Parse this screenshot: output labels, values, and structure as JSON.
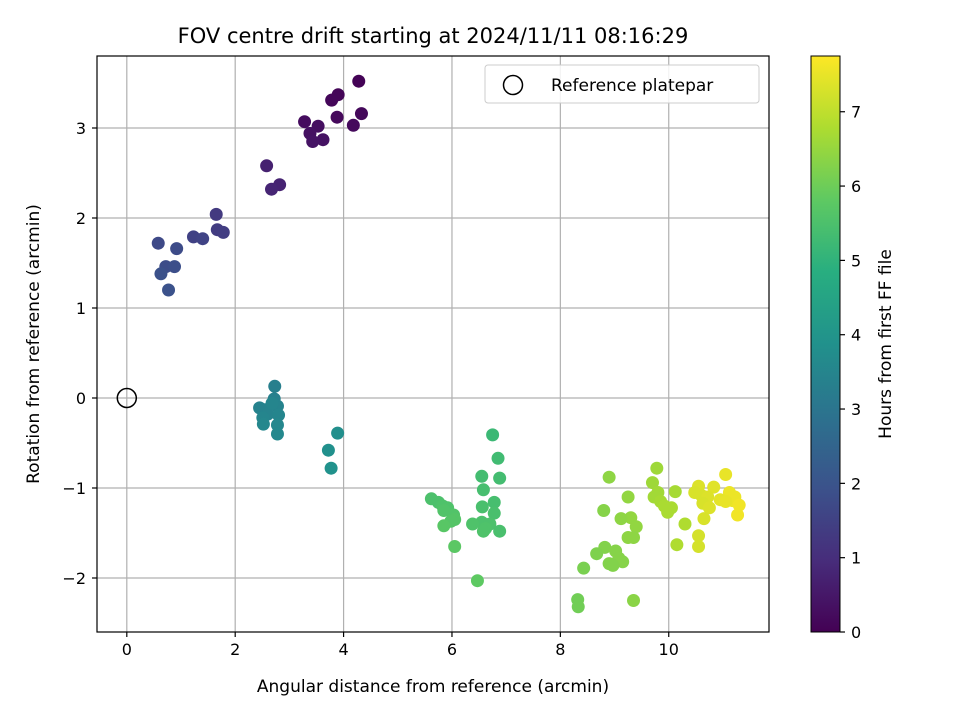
{
  "chart_data": {
    "type": "scatter",
    "title": "FOV centre drift starting at 2024/11/11 08:16:29",
    "xlabel": "Angular distance from reference (arcmin)",
    "ylabel": "Rotation from reference (arcmin)",
    "xlim": [
      -0.55,
      11.85
    ],
    "ylim": [
      -2.6,
      3.8
    ],
    "x_ticks": [
      "0",
      "2",
      "4",
      "6",
      "8",
      "10"
    ],
    "y_ticks": [
      "3",
      "2",
      "1",
      "0",
      "−1",
      "−2"
    ],
    "grid": true,
    "legend": {
      "label": "Reference platepar",
      "position": "top-right"
    },
    "reference_point": {
      "x": 0,
      "y": 0
    },
    "colorbar": {
      "label": "Hours from first FF file",
      "colormap": "viridis",
      "range": [
        0,
        7.75
      ],
      "ticks": [
        "0",
        "1",
        "2",
        "3",
        "4",
        "5",
        "6",
        "7"
      ]
    },
    "points": [
      {
        "x": 4.28,
        "y": 3.52,
        "c": 0.05
      },
      {
        "x": 3.9,
        "y": 3.37,
        "c": 0.1
      },
      {
        "x": 3.78,
        "y": 3.31,
        "c": 0.12
      },
      {
        "x": 4.33,
        "y": 3.16,
        "c": 0.15
      },
      {
        "x": 3.88,
        "y": 3.12,
        "c": 0.18
      },
      {
        "x": 4.18,
        "y": 3.03,
        "c": 0.2
      },
      {
        "x": 3.28,
        "y": 3.07,
        "c": 0.25
      },
      {
        "x": 3.53,
        "y": 3.02,
        "c": 0.3
      },
      {
        "x": 3.38,
        "y": 2.94,
        "c": 0.35
      },
      {
        "x": 3.62,
        "y": 2.87,
        "c": 0.38
      },
      {
        "x": 3.43,
        "y": 2.85,
        "c": 0.4
      },
      {
        "x": 2.58,
        "y": 2.58,
        "c": 0.7
      },
      {
        "x": 2.82,
        "y": 2.37,
        "c": 0.75
      },
      {
        "x": 2.67,
        "y": 2.32,
        "c": 0.8
      },
      {
        "x": 1.65,
        "y": 2.04,
        "c": 1.3
      },
      {
        "x": 1.67,
        "y": 1.87,
        "c": 1.35
      },
      {
        "x": 1.78,
        "y": 1.84,
        "c": 1.4
      },
      {
        "x": 1.23,
        "y": 1.79,
        "c": 1.5
      },
      {
        "x": 1.4,
        "y": 1.77,
        "c": 1.55
      },
      {
        "x": 0.58,
        "y": 1.72,
        "c": 1.7
      },
      {
        "x": 0.92,
        "y": 1.66,
        "c": 1.75
      },
      {
        "x": 0.72,
        "y": 1.46,
        "c": 1.8
      },
      {
        "x": 0.88,
        "y": 1.46,
        "c": 1.85
      },
      {
        "x": 0.63,
        "y": 1.38,
        "c": 1.9
      },
      {
        "x": 0.77,
        "y": 1.2,
        "c": 1.95
      },
      {
        "x": 2.73,
        "y": 0.13,
        "c": 3.3
      },
      {
        "x": 2.72,
        "y": -0.01,
        "c": 3.35
      },
      {
        "x": 2.45,
        "y": -0.11,
        "c": 3.4
      },
      {
        "x": 2.55,
        "y": -0.13,
        "c": 3.4
      },
      {
        "x": 2.78,
        "y": -0.09,
        "c": 3.45
      },
      {
        "x": 2.6,
        "y": -0.18,
        "c": 3.45
      },
      {
        "x": 2.8,
        "y": -0.19,
        "c": 3.5
      },
      {
        "x": 2.51,
        "y": -0.22,
        "c": 3.5
      },
      {
        "x": 2.68,
        "y": -0.06,
        "c": 3.5
      },
      {
        "x": 2.52,
        "y": -0.29,
        "c": 3.55
      },
      {
        "x": 2.78,
        "y": -0.3,
        "c": 3.55
      },
      {
        "x": 2.78,
        "y": -0.4,
        "c": 3.6
      },
      {
        "x": 3.89,
        "y": -0.39,
        "c": 3.8
      },
      {
        "x": 3.72,
        "y": -0.58,
        "c": 3.85
      },
      {
        "x": 3.77,
        "y": -0.78,
        "c": 3.9
      },
      {
        "x": 6.75,
        "y": -0.41,
        "c": 5.2
      },
      {
        "x": 6.85,
        "y": -0.67,
        "c": 5.3
      },
      {
        "x": 6.55,
        "y": -0.87,
        "c": 5.35
      },
      {
        "x": 6.88,
        "y": -0.89,
        "c": 5.35
      },
      {
        "x": 6.58,
        "y": -1.02,
        "c": 5.4
      },
      {
        "x": 5.62,
        "y": -1.12,
        "c": 5.5
      },
      {
        "x": 5.75,
        "y": -1.16,
        "c": 5.5
      },
      {
        "x": 6.78,
        "y": -1.16,
        "c": 5.4
      },
      {
        "x": 5.83,
        "y": -1.2,
        "c": 5.55
      },
      {
        "x": 5.92,
        "y": -1.22,
        "c": 5.55
      },
      {
        "x": 6.56,
        "y": -1.21,
        "c": 5.45
      },
      {
        "x": 5.85,
        "y": -1.25,
        "c": 5.6
      },
      {
        "x": 6.03,
        "y": -1.3,
        "c": 5.6
      },
      {
        "x": 6.78,
        "y": -1.28,
        "c": 5.45
      },
      {
        "x": 6.05,
        "y": -1.35,
        "c": 5.65
      },
      {
        "x": 5.98,
        "y": -1.37,
        "c": 5.65
      },
      {
        "x": 6.55,
        "y": -1.38,
        "c": 5.5
      },
      {
        "x": 6.7,
        "y": -1.4,
        "c": 5.5
      },
      {
        "x": 6.38,
        "y": -1.4,
        "c": 5.55
      },
      {
        "x": 5.85,
        "y": -1.42,
        "c": 5.7
      },
      {
        "x": 6.62,
        "y": -1.45,
        "c": 5.55
      },
      {
        "x": 6.58,
        "y": -1.48,
        "c": 5.55
      },
      {
        "x": 6.88,
        "y": -1.48,
        "c": 5.45
      },
      {
        "x": 6.05,
        "y": -1.65,
        "c": 5.75
      },
      {
        "x": 6.47,
        "y": -2.03,
        "c": 5.8
      },
      {
        "x": 9.78,
        "y": -0.78,
        "c": 6.6
      },
      {
        "x": 8.9,
        "y": -0.88,
        "c": 6.4
      },
      {
        "x": 9.7,
        "y": -0.94,
        "c": 6.6
      },
      {
        "x": 9.8,
        "y": -1.05,
        "c": 6.65
      },
      {
        "x": 10.12,
        "y": -1.04,
        "c": 6.7
      },
      {
        "x": 9.73,
        "y": -1.1,
        "c": 6.65
      },
      {
        "x": 9.25,
        "y": -1.1,
        "c": 6.45
      },
      {
        "x": 9.85,
        "y": -1.15,
        "c": 6.7
      },
      {
        "x": 9.92,
        "y": -1.2,
        "c": 6.75
      },
      {
        "x": 10.05,
        "y": -1.22,
        "c": 6.75
      },
      {
        "x": 9.98,
        "y": -1.27,
        "c": 6.75
      },
      {
        "x": 8.8,
        "y": -1.25,
        "c": 6.3
      },
      {
        "x": 9.3,
        "y": -1.33,
        "c": 6.45
      },
      {
        "x": 9.12,
        "y": -1.34,
        "c": 6.4
      },
      {
        "x": 10.3,
        "y": -1.4,
        "c": 6.8
      },
      {
        "x": 9.4,
        "y": -1.43,
        "c": 6.45
      },
      {
        "x": 9.25,
        "y": -1.55,
        "c": 6.4
      },
      {
        "x": 9.35,
        "y": -1.55,
        "c": 6.4
      },
      {
        "x": 10.15,
        "y": -1.63,
        "c": 6.8
      },
      {
        "x": 8.82,
        "y": -1.66,
        "c": 6.25
      },
      {
        "x": 9.02,
        "y": -1.7,
        "c": 6.3
      },
      {
        "x": 8.67,
        "y": -1.73,
        "c": 6.2
      },
      {
        "x": 9.08,
        "y": -1.78,
        "c": 6.3
      },
      {
        "x": 9.15,
        "y": -1.82,
        "c": 6.3
      },
      {
        "x": 8.9,
        "y": -1.84,
        "c": 6.25
      },
      {
        "x": 8.97,
        "y": -1.86,
        "c": 6.25
      },
      {
        "x": 8.43,
        "y": -1.89,
        "c": 6.15
      },
      {
        "x": 8.32,
        "y": -2.24,
        "c": 6.05
      },
      {
        "x": 8.33,
        "y": -2.32,
        "c": 6.05
      },
      {
        "x": 9.35,
        "y": -2.25,
        "c": 6.35
      },
      {
        "x": 11.05,
        "y": -0.85,
        "c": 7.5
      },
      {
        "x": 10.55,
        "y": -0.98,
        "c": 7.35
      },
      {
        "x": 10.83,
        "y": -0.99,
        "c": 7.4
      },
      {
        "x": 10.48,
        "y": -1.05,
        "c": 7.3
      },
      {
        "x": 11.12,
        "y": -1.05,
        "c": 7.55
      },
      {
        "x": 10.6,
        "y": -1.08,
        "c": 7.3
      },
      {
        "x": 10.72,
        "y": -1.1,
        "c": 7.35
      },
      {
        "x": 11.22,
        "y": -1.1,
        "c": 7.55
      },
      {
        "x": 10.95,
        "y": -1.13,
        "c": 7.45
      },
      {
        "x": 11.18,
        "y": -1.14,
        "c": 7.55
      },
      {
        "x": 11.05,
        "y": -1.15,
        "c": 7.5
      },
      {
        "x": 10.63,
        "y": -1.17,
        "c": 7.3
      },
      {
        "x": 11.3,
        "y": -1.19,
        "c": 7.6
      },
      {
        "x": 10.75,
        "y": -1.22,
        "c": 7.35
      },
      {
        "x": 11.27,
        "y": -1.3,
        "c": 7.6
      },
      {
        "x": 10.65,
        "y": -1.34,
        "c": 7.3
      },
      {
        "x": 10.55,
        "y": -1.53,
        "c": 7.25
      },
      {
        "x": 10.55,
        "y": -1.65,
        "c": 7.25
      }
    ]
  }
}
